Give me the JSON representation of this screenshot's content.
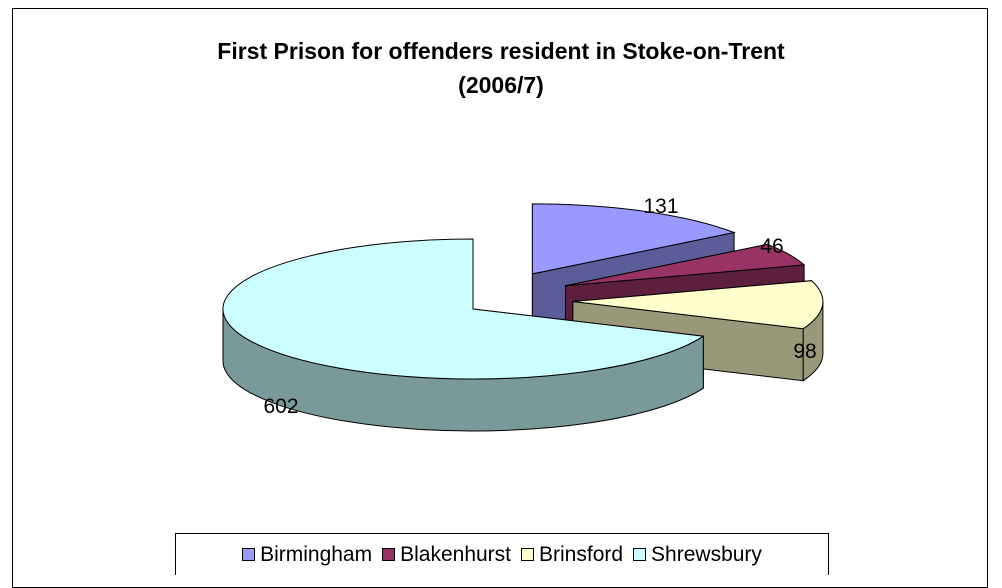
{
  "chart_data": {
    "type": "pie",
    "title_line1": "First Prison for offenders resident in Stoke-on-Trent",
    "title_line2": "(2006/7)",
    "categories": [
      "Birmingham",
      "Blakenhurst",
      "Brinsford",
      "Shrewsbury"
    ],
    "values": [
      131,
      46,
      98,
      602
    ],
    "colors": [
      "#9999ff",
      "#993366",
      "#ffffcc",
      "#ccffff"
    ],
    "data_labels": [
      "131",
      "46",
      "98",
      "602"
    ],
    "exploded": true,
    "three_d": true,
    "legend_position": "bottom"
  }
}
